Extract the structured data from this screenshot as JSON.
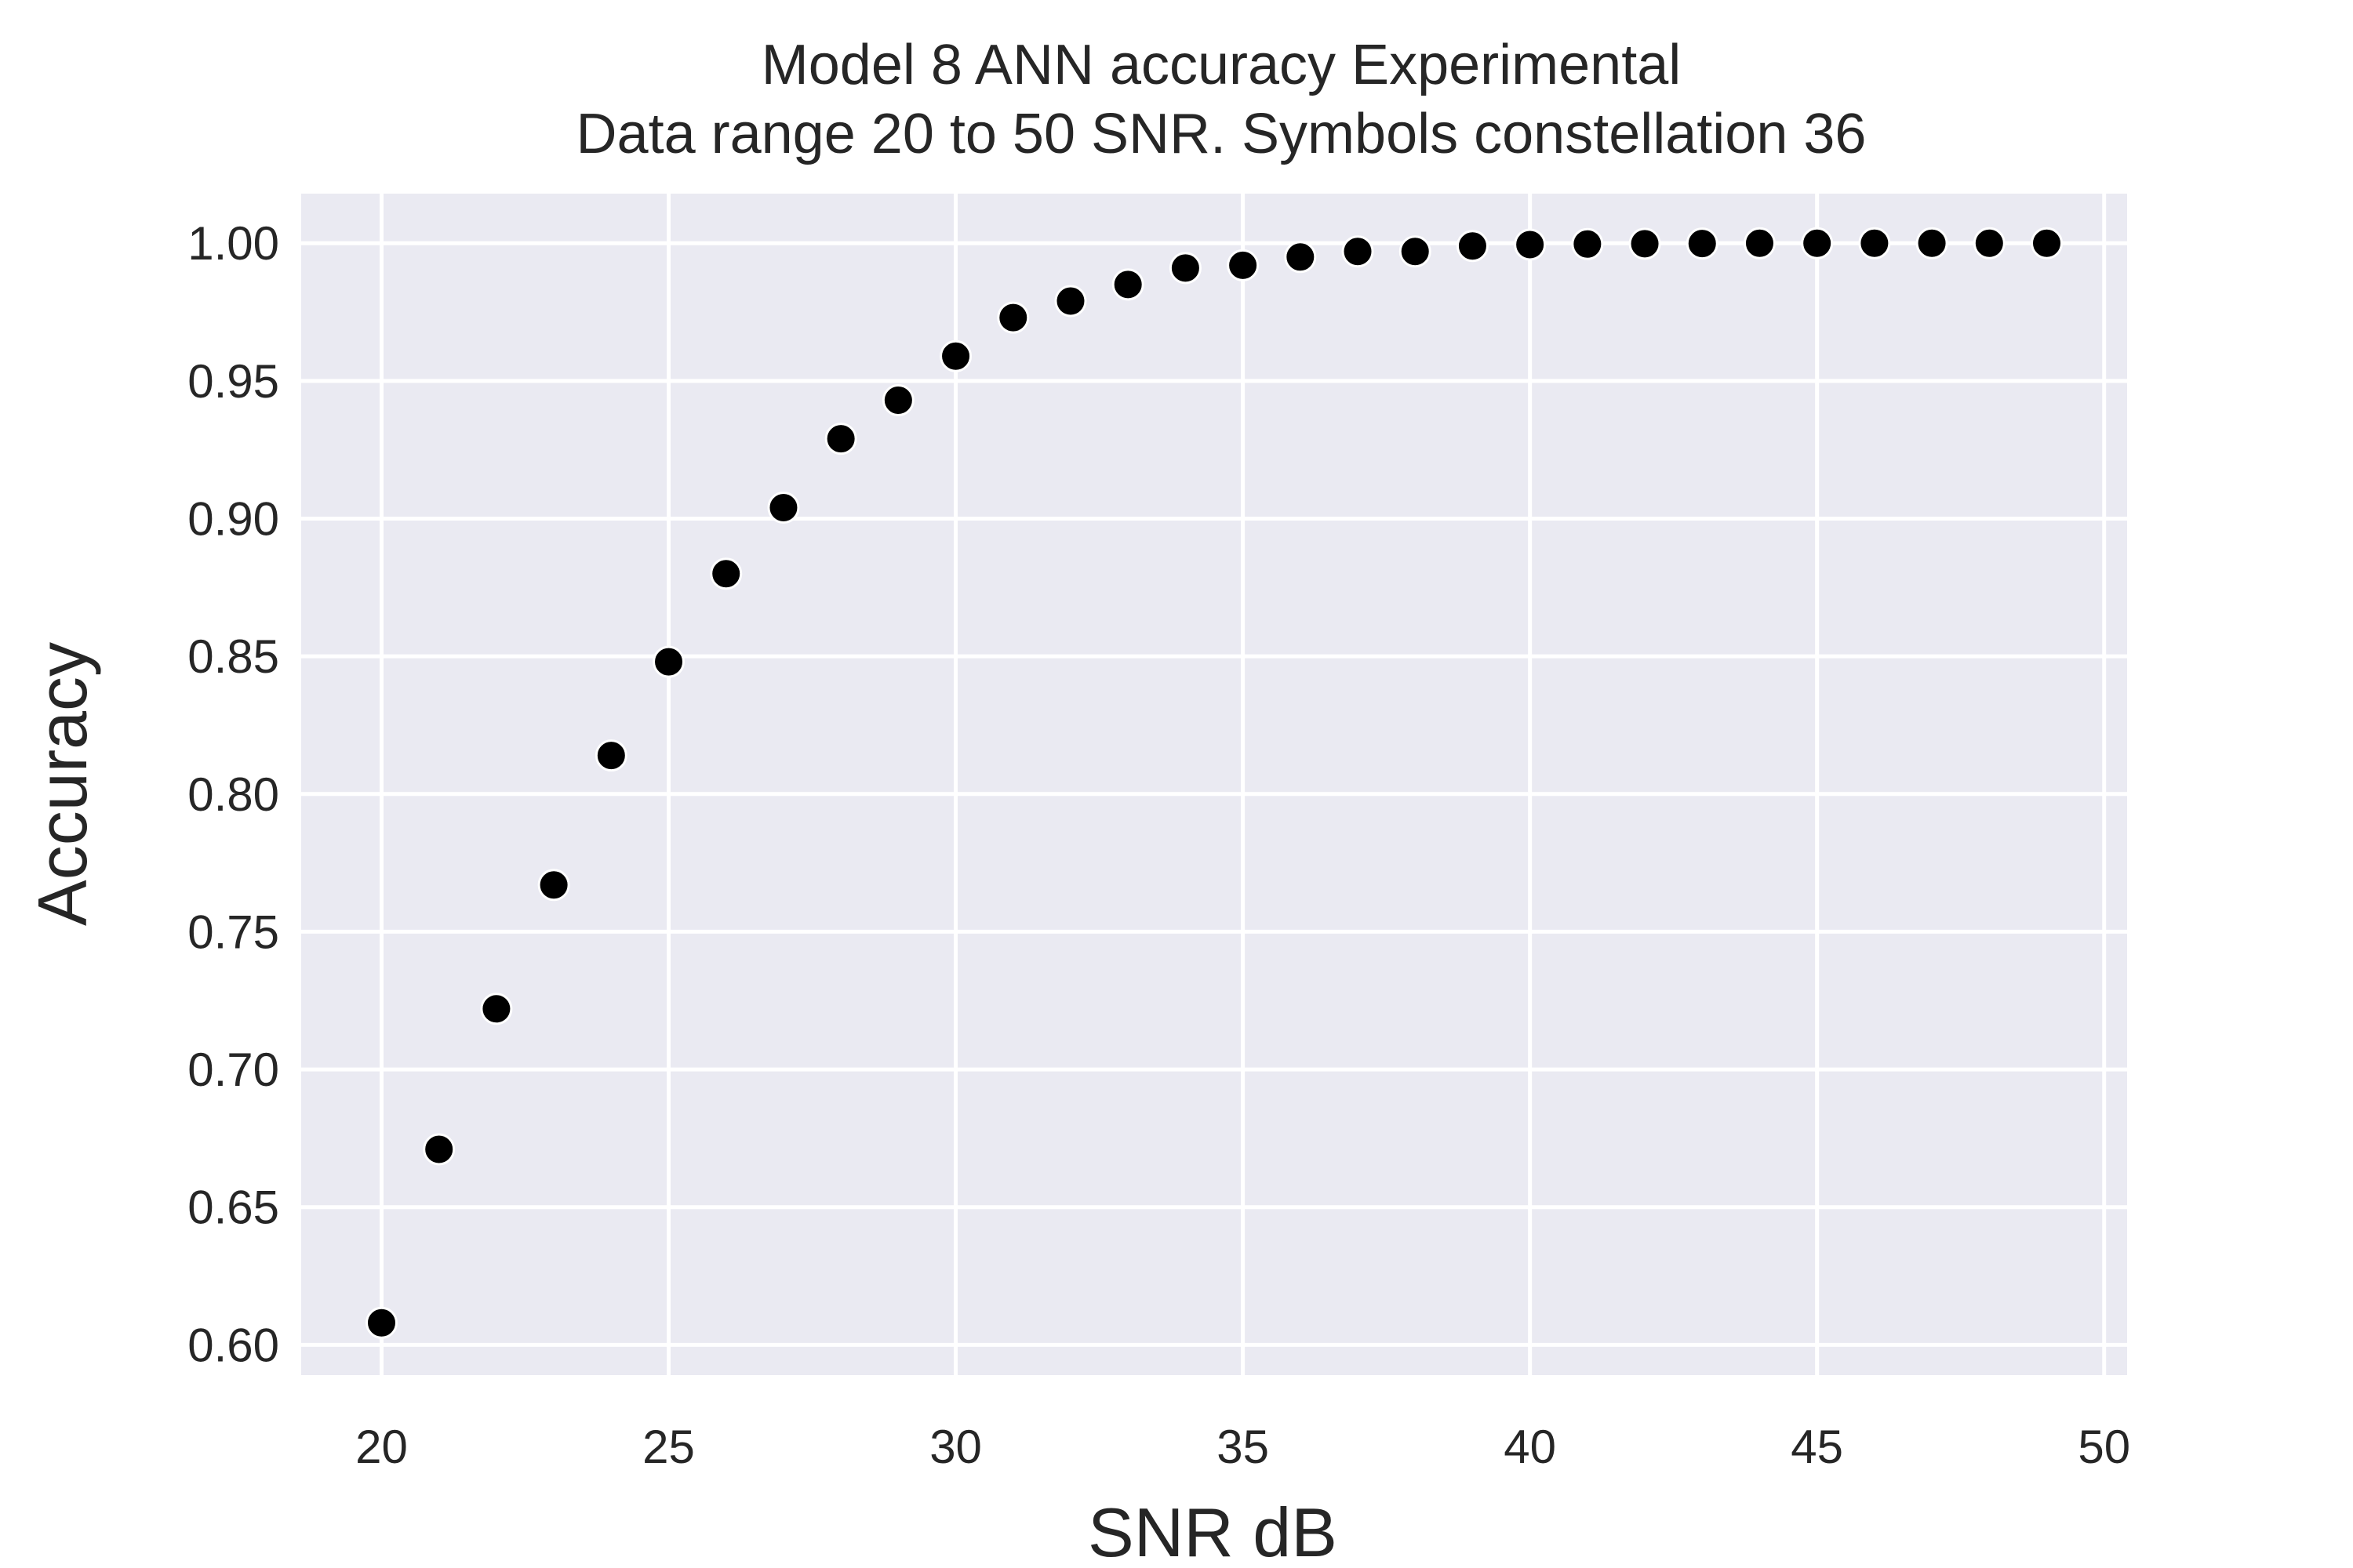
{
  "chart_data": {
    "type": "scatter",
    "title_lines": [
      "Model 8 ANN accuracy Experimental",
      "Data range 20 to 50 SNR. Symbols constellation 36"
    ],
    "xlabel": "SNR dB",
    "ylabel": "Accuracy",
    "xlim": [
      18.6,
      50.4
    ],
    "ylim": [
      0.589,
      1.018
    ],
    "xticks": [
      20,
      25,
      30,
      35,
      40,
      45,
      50
    ],
    "xtick_labels": [
      "20",
      "25",
      "30",
      "35",
      "40",
      "45",
      "50"
    ],
    "yticks": [
      0.6,
      0.65,
      0.7,
      0.75,
      0.8,
      0.85,
      0.9,
      0.95,
      1.0
    ],
    "ytick_labels": [
      "0.60",
      "0.65",
      "0.70",
      "0.75",
      "0.80",
      "0.85",
      "0.90",
      "0.95",
      "1.00"
    ],
    "grid": true,
    "colors": {
      "plot_background": "#eaeaf2",
      "grid": "#ffffff",
      "marker": "#000000",
      "marker_edge": "#ffffff",
      "text": "#262626"
    },
    "series": [
      {
        "x": [
          20,
          21,
          22,
          23,
          24,
          25,
          26,
          27,
          28,
          29,
          30,
          31,
          32,
          33,
          34,
          35,
          36,
          37,
          38,
          39,
          40,
          41,
          42,
          43,
          44,
          45,
          46,
          47,
          48,
          49
        ],
        "y": [
          0.608,
          0.671,
          0.722,
          0.767,
          0.814,
          0.848,
          0.88,
          0.904,
          0.929,
          0.943,
          0.959,
          0.973,
          0.979,
          0.985,
          0.991,
          0.992,
          0.995,
          0.997,
          0.997,
          0.999,
          0.9995,
          0.9997,
          0.9998,
          0.9999,
          1.0,
          1.0,
          1.0,
          1.0,
          1.0,
          1.0
        ]
      }
    ]
  }
}
